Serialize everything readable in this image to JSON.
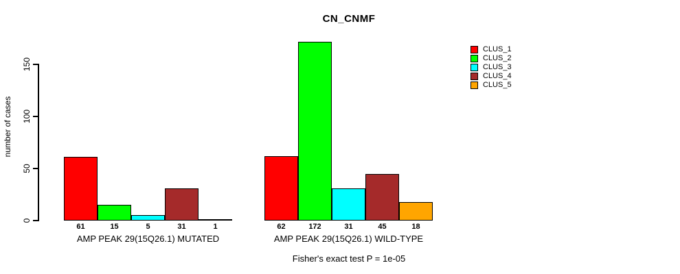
{
  "chart_data": {
    "type": "bar",
    "title": "CN_CNMF",
    "ylabel": "number of cases",
    "footnote": "Fisher's exact test P = 1e-05",
    "ylim": [
      0,
      175
    ],
    "yticks": [
      0,
      50,
      100,
      150
    ],
    "grid": false,
    "legend_position": "right",
    "bar_value_labels": true,
    "categories": [
      "AMP PEAK 29(15Q26.1) MUTATED",
      "AMP PEAK 29(15Q26.1) WILD-TYPE"
    ],
    "series": [
      {
        "name": "CLUS_1",
        "color": "#FF0000",
        "values": [
          61,
          62
        ]
      },
      {
        "name": "CLUS_2",
        "color": "#00FF00",
        "values": [
          15,
          172
        ]
      },
      {
        "name": "CLUS_3",
        "color": "#00FFFF",
        "values": [
          5,
          31
        ]
      },
      {
        "name": "CLUS_4",
        "color": "#A52A2A",
        "values": [
          31,
          45
        ]
      },
      {
        "name": "CLUS_5",
        "color": "#FFA500",
        "values": [
          1,
          18
        ]
      }
    ]
  }
}
